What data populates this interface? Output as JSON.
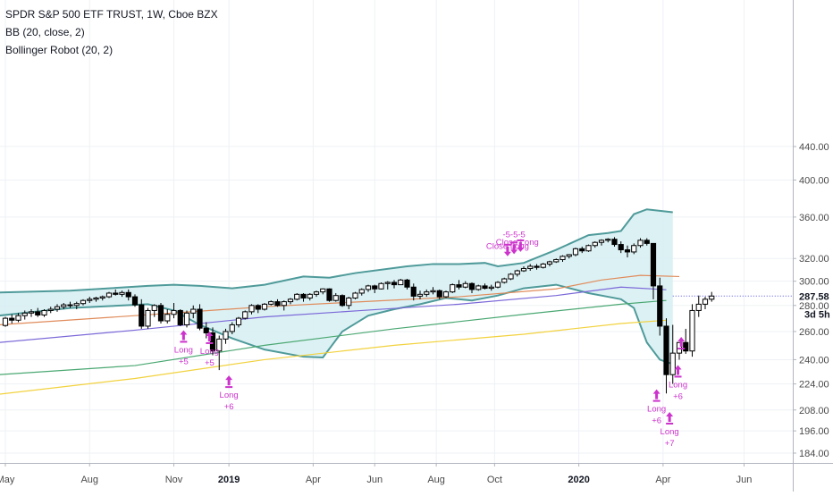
{
  "chart_data": {
    "type": "candlestick",
    "title": "SPDR S&P 500 ETF TRUST, 1W, Cboe BZX",
    "indicators": [
      "BB (20, close, 2)",
      "Bollinger Robot (20, 2)"
    ],
    "y_axis": {
      "ticks": [
        184,
        196,
        208,
        224,
        240,
        260,
        280,
        300,
        320,
        360,
        400,
        440
      ],
      "tick_labels": [
        "184.00",
        "196.00",
        "208.00",
        "224.00",
        "240.00",
        "260.00",
        "280.00",
        "300.00",
        "320.00",
        "360.00",
        "400.00",
        "440.00"
      ],
      "last_price_label": "287.58",
      "countdown_label": "3d 5h",
      "range": [
        180,
        460
      ]
    },
    "x_axis": {
      "labels": [
        {
          "text": "May",
          "week": 0,
          "bold": false
        },
        {
          "text": "Aug",
          "week": 13,
          "bold": false
        },
        {
          "text": "Nov",
          "week": 26,
          "bold": false
        },
        {
          "text": "2019",
          "week": 34.5,
          "bold": true
        },
        {
          "text": "Apr",
          "week": 47.5,
          "bold": false
        },
        {
          "text": "Jun",
          "week": 57,
          "bold": false
        },
        {
          "text": "Aug",
          "week": 66.5,
          "bold": false
        },
        {
          "text": "Oct",
          "week": 75.5,
          "bold": false
        },
        {
          "text": "2020",
          "week": 88.5,
          "bold": true
        },
        {
          "text": "Apr",
          "week": 101.5,
          "bold": false
        },
        {
          "text": "Jun",
          "week": 114,
          "bold": false
        }
      ],
      "range_weeks": [
        -1,
        118
      ]
    },
    "candles": [
      [
        264.5,
        271,
        263.5,
        270
      ],
      [
        270,
        273,
        266,
        268.5
      ],
      [
        268.5,
        274,
        267,
        272
      ],
      [
        272,
        276,
        269,
        274
      ],
      [
        274,
        277,
        271,
        275
      ],
      [
        275,
        278,
        271,
        272.5
      ],
      [
        272.5,
        277,
        271,
        276
      ],
      [
        276,
        279,
        274,
        277
      ],
      [
        277,
        281,
        275,
        279
      ],
      [
        279,
        282,
        277,
        280.5
      ],
      [
        280.5,
        283,
        278,
        280
      ],
      [
        280,
        283,
        277,
        281.5
      ],
      [
        281.5,
        285,
        280,
        284
      ],
      [
        284,
        287,
        282,
        285
      ],
      [
        285,
        287,
        283,
        286
      ],
      [
        286,
        288,
        284,
        287
      ],
      [
        287,
        291,
        286,
        290
      ],
      [
        290,
        293,
        288,
        289
      ],
      [
        289,
        292,
        287,
        290.5
      ],
      [
        290.5,
        293,
        284,
        287
      ],
      [
        287,
        289,
        279,
        280.5
      ],
      [
        280.5,
        285,
        262,
        264
      ],
      [
        264,
        278,
        262,
        276
      ],
      [
        276,
        281,
        271,
        280
      ],
      [
        280,
        282,
        266,
        268
      ],
      [
        268,
        277,
        266,
        273
      ],
      [
        273,
        282,
        270,
        276
      ],
      [
        276,
        277,
        264,
        265
      ],
      [
        265,
        276,
        263,
        274
      ],
      [
        274,
        280,
        270,
        277
      ],
      [
        277,
        281,
        261,
        262.5
      ],
      [
        262.5,
        267,
        255,
        259
      ],
      [
        259,
        263,
        243,
        246
      ],
      [
        246,
        257,
        233,
        254.5
      ],
      [
        254.5,
        262,
        251,
        260
      ],
      [
        260,
        267,
        258,
        265
      ],
      [
        265,
        271,
        263,
        270
      ],
      [
        270,
        276,
        269,
        275
      ],
      [
        275,
        281,
        273,
        280
      ],
      [
        280,
        281,
        274,
        277
      ],
      [
        277,
        282,
        276,
        281
      ],
      [
        281,
        284,
        280,
        283
      ],
      [
        283,
        285,
        279,
        280
      ],
      [
        280,
        284,
        276,
        283
      ],
      [
        283,
        286,
        281,
        285
      ],
      [
        285,
        290,
        284,
        289
      ],
      [
        289,
        290,
        283,
        286
      ],
      [
        286,
        290,
        284,
        289
      ],
      [
        289,
        292,
        287,
        291
      ],
      [
        291,
        294,
        289,
        293.5
      ],
      [
        293.5,
        294,
        283,
        284
      ],
      [
        284,
        290,
        283,
        288
      ],
      [
        288,
        289,
        279,
        280
      ],
      [
        280,
        287,
        277,
        286
      ],
      [
        286,
        291,
        285,
        290
      ],
      [
        290,
        294,
        288,
        293
      ],
      [
        293,
        297,
        291,
        296
      ],
      [
        296,
        297,
        290,
        293.5
      ],
      [
        293.5,
        299,
        293,
        298
      ],
      [
        298,
        300,
        293,
        299
      ],
      [
        299,
        301,
        294,
        297
      ],
      [
        297,
        302,
        297,
        301
      ],
      [
        301,
        302,
        293,
        295
      ],
      [
        295,
        298,
        284,
        287.5
      ],
      [
        287.5,
        292,
        285,
        289
      ],
      [
        289,
        293,
        287,
        291
      ],
      [
        291,
        295,
        289,
        292
      ],
      [
        292,
        293,
        285,
        287
      ],
      [
        287,
        292,
        286,
        291
      ],
      [
        291,
        298,
        290,
        297
      ],
      [
        297,
        301,
        293,
        295
      ],
      [
        295,
        300,
        294,
        298
      ],
      [
        298,
        299,
        290,
        293
      ],
      [
        293,
        297,
        292,
        296
      ],
      [
        296,
        298,
        293,
        294
      ],
      [
        294,
        297,
        292,
        295
      ],
      [
        295,
        300,
        294,
        299
      ],
      [
        299,
        303,
        298,
        302
      ],
      [
        302,
        307,
        301,
        306
      ],
      [
        306,
        310,
        304,
        309
      ],
      [
        309,
        313,
        308,
        311
      ],
      [
        311,
        315,
        309,
        313
      ],
      [
        313,
        315,
        310,
        312
      ],
      [
        312,
        316,
        311,
        315
      ],
      [
        315,
        318,
        313,
        317
      ],
      [
        317,
        320,
        316,
        319
      ],
      [
        319,
        323,
        317,
        322
      ],
      [
        322,
        324,
        320,
        323.5
      ],
      [
        323.5,
        330,
        322,
        329
      ],
      [
        329,
        331,
        325,
        327
      ],
      [
        327,
        333,
        326,
        332
      ],
      [
        332,
        336,
        330,
        335
      ],
      [
        335,
        338,
        332,
        337
      ],
      [
        337,
        339,
        335,
        338
      ],
      [
        338,
        340,
        331,
        333
      ],
      [
        333,
        336,
        325,
        328
      ],
      [
        328,
        332,
        321,
        326
      ],
      [
        326,
        334,
        324,
        332
      ],
      [
        332,
        339,
        330,
        337
      ],
      [
        337,
        339,
        332,
        334
      ],
      [
        334,
        334,
        285,
        296
      ],
      [
        296,
        303,
        257,
        264
      ],
      [
        264,
        270,
        218,
        230
      ],
      [
        230,
        265,
        224,
        244.5
      ],
      [
        244.5,
        252,
        240,
        252
      ],
      [
        252,
        262,
        244,
        246
      ],
      [
        246,
        281,
        242,
        276
      ],
      [
        276,
        288,
        271,
        281
      ],
      [
        281,
        287,
        277,
        285
      ],
      [
        285,
        291,
        283,
        287.58
      ]
    ],
    "moving_averages": [
      {
        "name": "",
        "color": "#e08b5a",
        "points": [
          [
            -1,
            265
          ],
          [
            20,
            272
          ],
          [
            40,
            279
          ],
          [
            55,
            283
          ],
          [
            70,
            287
          ],
          [
            85,
            293.5
          ],
          [
            92,
            301
          ],
          [
            98,
            305
          ],
          [
            104,
            304
          ]
        ]
      },
      {
        "name": "",
        "color": "#7b68d8",
        "points": [
          [
            -1,
            252
          ],
          [
            20,
            261
          ],
          [
            40,
            271
          ],
          [
            55,
            276
          ],
          [
            70,
            281
          ],
          [
            85,
            288
          ],
          [
            95,
            295
          ],
          [
            102,
            292.8
          ]
        ]
      },
      {
        "name": "",
        "color": "#4aa872",
        "points": [
          [
            -1,
            230
          ],
          [
            20,
            236
          ],
          [
            40,
            250
          ],
          [
            60,
            262
          ],
          [
            80,
            273
          ],
          [
            95,
            281
          ],
          [
            102,
            284
          ]
        ]
      },
      {
        "name": "",
        "color": "#f2d23e",
        "points": [
          [
            -1,
            217.5
          ],
          [
            20,
            227.5
          ],
          [
            40,
            240
          ],
          [
            60,
            250
          ],
          [
            80,
            258
          ],
          [
            95,
            266
          ],
          [
            102,
            268.5
          ]
        ]
      }
    ],
    "bollinger_bands": {
      "color": "#4f9a9a",
      "fill": "#d6eef2",
      "upper": [
        [
          -1,
          290.5
        ],
        [
          10,
          292
        ],
        [
          22,
          296
        ],
        [
          26,
          297
        ],
        [
          30,
          296
        ],
        [
          35,
          294
        ],
        [
          40,
          297
        ],
        [
          46,
          304
        ],
        [
          50,
          303
        ],
        [
          54,
          307
        ],
        [
          62,
          313
        ],
        [
          66,
          315
        ],
        [
          70,
          315
        ],
        [
          74,
          316
        ],
        [
          76,
          313
        ],
        [
          80,
          316
        ],
        [
          85,
          328
        ],
        [
          90,
          342
        ],
        [
          93,
          344
        ],
        [
          95,
          346
        ],
        [
          97,
          363
        ],
        [
          99,
          368
        ],
        [
          103,
          365
        ]
      ],
      "lower": [
        [
          -1,
          272
        ],
        [
          10,
          278
        ],
        [
          22,
          281
        ],
        [
          26,
          276
        ],
        [
          30,
          265
        ],
        [
          35,
          255
        ],
        [
          40,
          247
        ],
        [
          46,
          242
        ],
        [
          49,
          241.5
        ],
        [
          52,
          260
        ],
        [
          56,
          272
        ],
        [
          60,
          277
        ],
        [
          64,
          281
        ],
        [
          68,
          286
        ],
        [
          72,
          284
        ],
        [
          76,
          288
        ],
        [
          80,
          294
        ],
        [
          85,
          297
        ],
        [
          90,
          290
        ],
        [
          93,
          287
        ],
        [
          95,
          285
        ],
        [
          97,
          278
        ],
        [
          99,
          252
        ],
        [
          101,
          240
        ],
        [
          103,
          237
        ]
      ]
    },
    "last_price_line": {
      "value": 287.58,
      "color": "#4f4fd8"
    },
    "signals": [
      {
        "week": 27.5,
        "lines": [
          "Long",
          "+5"
        ],
        "price": 265
      },
      {
        "week": 31.5,
        "lines": [
          "Long",
          "+5"
        ],
        "price": 264
      },
      {
        "week": 34.5,
        "lines": [
          "Long",
          "+6"
        ],
        "price": 233
      },
      {
        "week": 100.5,
        "lines": [
          "Long",
          "+6"
        ],
        "price": 224
      },
      {
        "week": 102.5,
        "lines": [
          "Long",
          "+7"
        ],
        "price": 210
      },
      {
        "week": 103.8,
        "lines": [
          "Long",
          "+6"
        ],
        "price": 240
      }
    ],
    "signal_marks": [
      {
        "week": 104.3,
        "price": 256
      }
    ],
    "close_labels": [
      {
        "text": "-5-5-5",
        "week": 78.5,
        "price": 340
      },
      {
        "text": "Close Long",
        "week": 79,
        "price": 332.5
      },
      {
        "text": "Close Long",
        "week": 77.5,
        "price": 329
      }
    ],
    "close_arrows": [
      {
        "week": 77.5,
        "price": 322
      },
      {
        "week": 78.5,
        "price": 324
      },
      {
        "week": 79.5,
        "price": 326
      }
    ],
    "colors": {
      "up_candle_fill": "#ffffff",
      "down_candle_fill": "#000000",
      "candle_border": "#000000",
      "signal": "#cc33cc",
      "grid": "#eef1f5",
      "axis_text": "#4a4a4a",
      "countdown_bg": "#ffffff"
    },
    "grid": true,
    "legend_placement": "top-left"
  }
}
